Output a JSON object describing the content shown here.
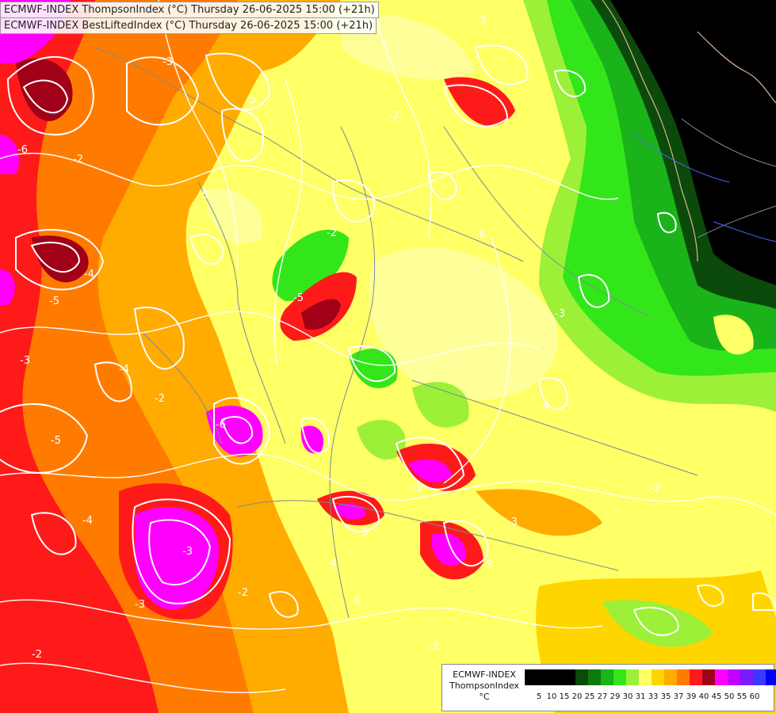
{
  "header": {
    "line1": "ECMWF-INDEX ThompsonIndex (°C) Thursday 26-06-2025 15:00 (+21h)",
    "line2": "ECMWF-INDEX BestLiftedIndex (°C) Thursday 26-06-2025 15:00 (+21h)"
  },
  "legend": {
    "model": "ECMWF-INDEX",
    "parameter": "ThompsonIndex",
    "unit": "°C",
    "levels": [
      "5",
      "10",
      "15",
      "20",
      "25",
      "27",
      "29",
      "30",
      "31",
      "33",
      "35",
      "37",
      "39",
      "40",
      "45",
      "50",
      "55",
      "60"
    ],
    "colors": [
      "#000000",
      "#000000",
      "#000000",
      "#000000",
      "#0b4a0b",
      "#0e7a0e",
      "#18b418",
      "#33e61a",
      "#9cf038",
      "#ffff66",
      "#ffd500",
      "#ffab00",
      "#ff7b00",
      "#ff1a1a",
      "#a00018",
      "#ff00ff",
      "#c300ff",
      "#7a1aff",
      "#3a3aff",
      "#0000ff"
    ]
  },
  "map": {
    "colors": {
      "black": "#000000",
      "dark_green": "#0b4a0b",
      "green": "#1ab41a",
      "bright_green": "#33e61a",
      "light_green": "#9cf038",
      "pale_yellow": "#ffff99",
      "yellow": "#ffff33",
      "gold": "#ffd500",
      "orange": "#ffab00",
      "dark_orange": "#ff7b00",
      "red": "#ff1a1a",
      "dark_red": "#a00018",
      "magenta": "#ff00ff",
      "contour": "#ffffff",
      "border": "#7a8a9a"
    },
    "contour_labels": [
      "-3",
      "-5",
      "-6",
      "-2",
      "-4",
      "-5",
      "-3",
      "-2",
      "-6",
      "-5",
      "-4",
      "-3",
      "-2",
      "-5",
      "-4",
      "-6",
      "-3",
      "-5",
      "-4",
      "-2",
      "-5",
      "-3",
      "-2",
      "-6",
      "-4",
      "-3",
      "-5",
      "-2",
      "-3",
      "-4",
      "-5",
      "-3",
      "-2"
    ]
  }
}
